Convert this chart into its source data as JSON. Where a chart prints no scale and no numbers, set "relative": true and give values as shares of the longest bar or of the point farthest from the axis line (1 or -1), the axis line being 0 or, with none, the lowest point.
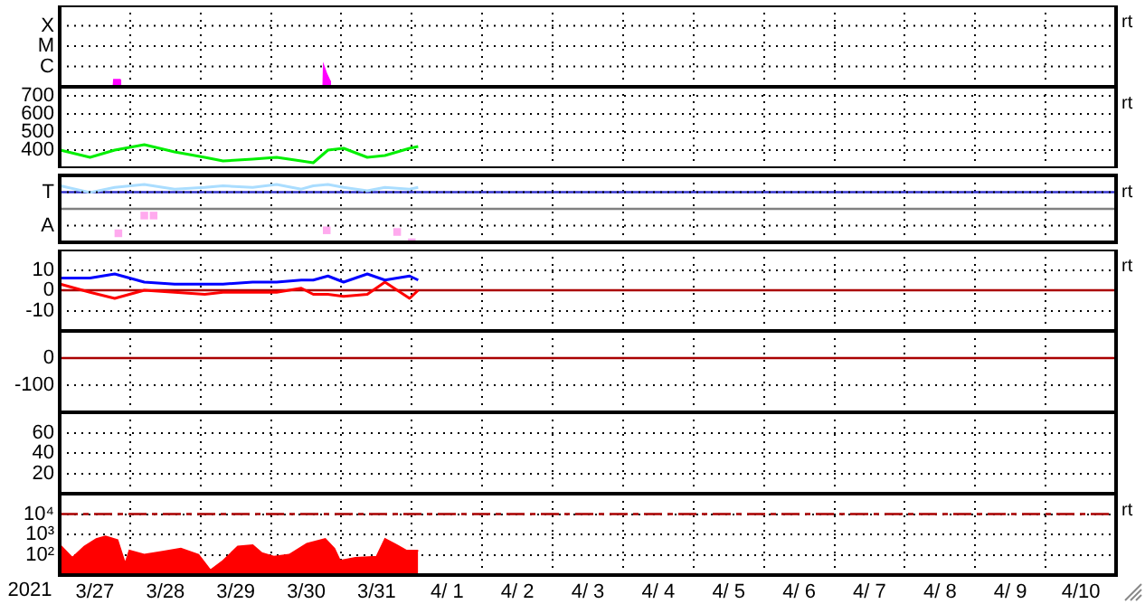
{
  "chart_data": [
    {
      "type": "area",
      "relative": true,
      "grid": true,
      "tick_labels": false,
      "annotations": [
        "X",
        "M",
        "C",
        "rt"
      ],
      "xlim": [
        "2021-03-27T00:00",
        "2021-04-11T00:00"
      ],
      "xticks": [
        {
          "value": "2021-03-28T00:00",
          "label": null
        },
        {
          "value": "2021-03-29T00:00",
          "label": null
        },
        {
          "value": "2021-03-30T00:00",
          "label": null
        },
        {
          "value": "2021-03-31T00:00",
          "label": null
        },
        {
          "value": "2021-04-01T00:00",
          "label": null
        },
        {
          "value": "2021-04-02T00:00",
          "label": null
        },
        {
          "value": "2021-04-03T00:00",
          "label": null
        },
        {
          "value": "2021-04-04T00:00",
          "label": null
        },
        {
          "value": "2021-04-05T00:00",
          "label": null
        },
        {
          "value": "2021-04-06T00:00",
          "label": null
        },
        {
          "value": "2021-04-07T00:00",
          "label": null
        },
        {
          "value": "2021-04-08T00:00",
          "label": null
        },
        {
          "value": "2021-04-09T00:00",
          "label": null
        },
        {
          "value": "2021-04-10T00:00",
          "label": null
        }
      ],
      "series": [
        {
          "color": "#ff00ff",
          "x": [
            "2021-03-27T18:20",
            "2021-03-27T18:30",
            "2021-03-27T20:30",
            "2021-03-27T20:40",
            "2021-03-30T17:50",
            "2021-03-30T18:00",
            "2021-03-30T19:00",
            "2021-03-30T20:00",
            "2021-03-30T20:10"
          ],
          "values": [
            0,
            0.35,
            0.35,
            0,
            0,
            1,
            0.6,
            0.3,
            0
          ]
        }
      ]
    },
    {
      "type": "line",
      "ylim": [
        300,
        750
      ],
      "yticks": [
        400,
        500,
        600,
        700
      ],
      "grid": true,
      "tick_labels": "y",
      "annotations": [
        "rt"
      ],
      "xlim": [
        "2021-03-27T00:00",
        "2021-04-11T00:00"
      ],
      "xticks": [
        {
          "value": "2021-03-28T00:00",
          "label": null
        },
        {
          "value": "2021-03-29T00:00",
          "label": null
        },
        {
          "value": "2021-03-30T00:00",
          "label": null
        },
        {
          "value": "2021-03-31T00:00",
          "label": null
        },
        {
          "value": "2021-04-01T00:00",
          "label": null
        },
        {
          "value": "2021-04-02T00:00",
          "label": null
        },
        {
          "value": "2021-04-03T00:00",
          "label": null
        },
        {
          "value": "2021-04-04T00:00",
          "label": null
        },
        {
          "value": "2021-04-05T00:00",
          "label": null
        },
        {
          "value": "2021-04-06T00:00",
          "label": null
        },
        {
          "value": "2021-04-07T00:00",
          "label": null
        },
        {
          "value": "2021-04-08T00:00",
          "label": null
        },
        {
          "value": "2021-04-09T00:00",
          "label": null
        },
        {
          "value": "2021-04-10T00:00",
          "label": null
        }
      ],
      "x": [
        "2021-03-27T00:15",
        "2021-03-27T10:20",
        "2021-03-27T18:45",
        "2021-03-28T04:50",
        "2021-03-28T15:10",
        "2021-03-29T01:25",
        "2021-03-29T07:40",
        "2021-03-29T17:45",
        "2021-03-30T01:55",
        "2021-03-30T10:20",
        "2021-03-30T14:25",
        "2021-03-30T19:25",
        "2021-03-31T00:45",
        "2021-03-31T08:50",
        "2021-03-31T14:50",
        "2021-03-31T23:15",
        "2021-04-01T02:10"
      ],
      "series": [
        {
          "color": "#00ee00",
          "values": [
            400,
            360,
            400,
            430,
            390,
            360,
            340,
            350,
            360,
            340,
            330,
            400,
            410,
            360,
            370,
            410,
            420
          ]
        }
      ]
    },
    {
      "type": "line",
      "relative": true,
      "grid": true,
      "tick_labels": false,
      "annotations": [
        "T",
        "A",
        "rt"
      ],
      "ref_lines": [
        {
          "axis": "y",
          "value": 0.5,
          "color": "#3333cc"
        },
        {
          "axis": "y",
          "value": 0,
          "color": "#808080"
        }
      ],
      "xlim": [
        "2021-03-27T00:00",
        "2021-04-11T00:00"
      ],
      "xticks": [
        {
          "value": "2021-03-28T00:00",
          "label": null
        },
        {
          "value": "2021-03-29T00:00",
          "label": null
        },
        {
          "value": "2021-03-30T00:00",
          "label": null
        },
        {
          "value": "2021-03-31T00:00",
          "label": null
        },
        {
          "value": "2021-04-01T00:00",
          "label": null
        },
        {
          "value": "2021-04-02T00:00",
          "label": null
        },
        {
          "value": "2021-04-03T00:00",
          "label": null
        },
        {
          "value": "2021-04-04T00:00",
          "label": null
        },
        {
          "value": "2021-04-05T00:00",
          "label": null
        },
        {
          "value": "2021-04-06T00:00",
          "label": null
        },
        {
          "value": "2021-04-07T00:00",
          "label": null
        },
        {
          "value": "2021-04-08T00:00",
          "label": null
        },
        {
          "value": "2021-04-09T00:00",
          "label": null
        },
        {
          "value": "2021-04-10T00:00",
          "label": null
        }
      ],
      "x": [
        "2021-03-27T00:15",
        "2021-03-27T10:20",
        "2021-03-27T18:45",
        "2021-03-28T04:50",
        "2021-03-28T15:10",
        "2021-03-29T01:25",
        "2021-03-29T07:40",
        "2021-03-29T17:45",
        "2021-03-30T01:55",
        "2021-03-30T10:20",
        "2021-03-30T14:25",
        "2021-03-30T19:25",
        "2021-03-31T00:45",
        "2021-03-31T08:50",
        "2021-03-31T14:50",
        "2021-03-31T23:15",
        "2021-04-01T02:10"
      ],
      "series": [
        {
          "color": "#aaddff",
          "values": [
            0.69,
            0.49,
            0.64,
            0.73,
            0.59,
            0.64,
            0.69,
            0.64,
            0.73,
            0.59,
            0.69,
            0.73,
            0.64,
            0.54,
            0.64,
            0.59,
            0.64
          ]
        },
        {
          "type": "scatter",
          "marker": "square",
          "color": "#ffaaee",
          "x": [
            "2021-03-27T20:00",
            "2021-03-28T04:50",
            "2021-03-28T08:00",
            "2021-03-30T19:00",
            "2021-03-31T19:00",
            "2021-04-01T00:00"
          ],
          "values": [
            -0.73,
            -0.2,
            -0.2,
            -0.64,
            -0.69,
            -1
          ]
        }
      ]
    },
    {
      "type": "line",
      "ylim": [
        -20,
        20
      ],
      "yticks": [
        -10,
        0,
        10
      ],
      "grid": true,
      "tick_labels": "y",
      "annotations": [
        "rt"
      ],
      "ref_lines": [
        {
          "axis": "y",
          "value": 0,
          "color": "#aa0000"
        }
      ],
      "xlim": [
        "2021-03-27T00:00",
        "2021-04-11T00:00"
      ],
      "xticks": [
        {
          "value": "2021-03-28T00:00",
          "label": null
        },
        {
          "value": "2021-03-29T00:00",
          "label": null
        },
        {
          "value": "2021-03-30T00:00",
          "label": null
        },
        {
          "value": "2021-03-31T00:00",
          "label": null
        },
        {
          "value": "2021-04-01T00:00",
          "label": null
        },
        {
          "value": "2021-04-02T00:00",
          "label": null
        },
        {
          "value": "2021-04-03T00:00",
          "label": null
        },
        {
          "value": "2021-04-04T00:00",
          "label": null
        },
        {
          "value": "2021-04-05T00:00",
          "label": null
        },
        {
          "value": "2021-04-06T00:00",
          "label": null
        },
        {
          "value": "2021-04-07T00:00",
          "label": null
        },
        {
          "value": "2021-04-08T00:00",
          "label": null
        },
        {
          "value": "2021-04-09T00:00",
          "label": null
        },
        {
          "value": "2021-04-10T00:00",
          "label": null
        }
      ],
      "x": [
        "2021-03-27T00:15",
        "2021-03-27T10:20",
        "2021-03-27T18:45",
        "2021-03-28T04:50",
        "2021-03-28T15:10",
        "2021-03-29T01:25",
        "2021-03-29T07:40",
        "2021-03-29T17:45",
        "2021-03-30T01:55",
        "2021-03-30T10:20",
        "2021-03-30T14:25",
        "2021-03-30T19:25",
        "2021-03-31T00:45",
        "2021-03-31T08:50",
        "2021-03-31T14:50",
        "2021-03-31T23:15",
        "2021-04-01T02:10"
      ],
      "series": [
        {
          "color": "#0000ff",
          "values": [
            6,
            6,
            8,
            4,
            3,
            3,
            3,
            4,
            4,
            5,
            5,
            7,
            4,
            8,
            5,
            7,
            5
          ]
        },
        {
          "color": "#ff0000",
          "values": [
            3,
            -1,
            -4,
            0,
            -1,
            -2,
            -1,
            -1,
            -1,
            1,
            -2,
            -2,
            -3,
            -2,
            4,
            -4,
            0
          ]
        }
      ]
    },
    {
      "type": "line",
      "ylim": [
        -200,
        100
      ],
      "yticks": [
        -100,
        0
      ],
      "grid": true,
      "tick_labels": "y",
      "ref_lines": [
        {
          "axis": "y",
          "value": 0,
          "color": "#aa0000"
        }
      ],
      "xlim": [
        "2021-03-27T00:00",
        "2021-04-11T00:00"
      ],
      "xticks": [
        {
          "value": "2021-03-28T00:00",
          "label": null
        },
        {
          "value": "2021-03-29T00:00",
          "label": null
        },
        {
          "value": "2021-03-30T00:00",
          "label": null
        },
        {
          "value": "2021-03-31T00:00",
          "label": null
        },
        {
          "value": "2021-04-01T00:00",
          "label": null
        },
        {
          "value": "2021-04-02T00:00",
          "label": null
        },
        {
          "value": "2021-04-03T00:00",
          "label": null
        },
        {
          "value": "2021-04-04T00:00",
          "label": null
        },
        {
          "value": "2021-04-05T00:00",
          "label": null
        },
        {
          "value": "2021-04-06T00:00",
          "label": null
        },
        {
          "value": "2021-04-07T00:00",
          "label": null
        },
        {
          "value": "2021-04-08T00:00",
          "label": null
        },
        {
          "value": "2021-04-09T00:00",
          "label": null
        },
        {
          "value": "2021-04-10T00:00",
          "label": null
        }
      ]
    },
    {
      "type": "line",
      "ylim": [
        0,
        80
      ],
      "yticks": [
        20,
        40,
        60
      ],
      "grid": true,
      "tick_labels": "y",
      "xlim": [
        "2021-03-27T00:00",
        "2021-04-11T00:00"
      ],
      "xticks": [
        {
          "value": "2021-03-28T00:00",
          "label": null
        },
        {
          "value": "2021-03-29T00:00",
          "label": null
        },
        {
          "value": "2021-03-30T00:00",
          "label": null
        },
        {
          "value": "2021-03-31T00:00",
          "label": null
        },
        {
          "value": "2021-04-01T00:00",
          "label": null
        },
        {
          "value": "2021-04-02T00:00",
          "label": null
        },
        {
          "value": "2021-04-03T00:00",
          "label": null
        },
        {
          "value": "2021-04-04T00:00",
          "label": null
        },
        {
          "value": "2021-04-05T00:00",
          "label": null
        },
        {
          "value": "2021-04-06T00:00",
          "label": null
        },
        {
          "value": "2021-04-07T00:00",
          "label": null
        },
        {
          "value": "2021-04-08T00:00",
          "label": null
        },
        {
          "value": "2021-04-09T00:00",
          "label": null
        },
        {
          "value": "2021-04-10T00:00",
          "label": null
        }
      ]
    },
    {
      "type": "area",
      "log": "y",
      "ylim": [
        10,
        100000
      ],
      "yticks": [
        {
          "value": 100,
          "label": "10²"
        },
        {
          "value": 1000,
          "label": "10³"
        },
        {
          "value": 10000,
          "label": "10⁴"
        }
      ],
      "grid": true,
      "annotations": [
        "rt"
      ],
      "xlabel": "2021",
      "ref_lines": [
        {
          "axis": "y",
          "value": 10000,
          "color": "#aa0000",
          "line_style": "dashed"
        }
      ],
      "xlim": [
        "2021-03-27T00:00",
        "2021-04-11T00:00"
      ],
      "xticks": [
        {
          "value": "2021-03-27T12:00",
          "label": "3/27"
        },
        {
          "value": "2021-03-28T00:00",
          "label": null
        },
        {
          "value": "2021-03-28T12:00",
          "label": "3/28"
        },
        {
          "value": "2021-03-29T00:00",
          "label": null
        },
        {
          "value": "2021-03-29T12:00",
          "label": "3/29"
        },
        {
          "value": "2021-03-30T00:00",
          "label": null
        },
        {
          "value": "2021-03-30T12:00",
          "label": "3/30"
        },
        {
          "value": "2021-03-31T00:00",
          "label": null
        },
        {
          "value": "2021-03-31T12:00",
          "label": "3/31"
        },
        {
          "value": "2021-04-01T00:00",
          "label": null
        },
        {
          "value": "2021-04-01T12:00",
          "label": "4/ 1"
        },
        {
          "value": "2021-04-02T00:00",
          "label": null
        },
        {
          "value": "2021-04-02T12:00",
          "label": "4/ 2"
        },
        {
          "value": "2021-04-03T00:00",
          "label": null
        },
        {
          "value": "2021-04-03T12:00",
          "label": "4/ 3"
        },
        {
          "value": "2021-04-04T00:00",
          "label": null
        },
        {
          "value": "2021-04-04T12:00",
          "label": "4/ 4"
        },
        {
          "value": "2021-04-05T00:00",
          "label": null
        },
        {
          "value": "2021-04-05T12:00",
          "label": "4/ 5"
        },
        {
          "value": "2021-04-06T00:00",
          "label": null
        },
        {
          "value": "2021-04-06T12:00",
          "label": "4/ 6"
        },
        {
          "value": "2021-04-07T00:00",
          "label": null
        },
        {
          "value": "2021-04-07T12:00",
          "label": "4/ 7"
        },
        {
          "value": "2021-04-08T00:00",
          "label": null
        },
        {
          "value": "2021-04-08T12:00",
          "label": "4/ 8"
        },
        {
          "value": "2021-04-09T00:00",
          "label": null
        },
        {
          "value": "2021-04-09T12:00",
          "label": "4/ 9"
        },
        {
          "value": "2021-04-10T00:00",
          "label": null
        },
        {
          "value": "2021-04-10T12:00",
          "label": "4/10"
        }
      ],
      "x": [
        "2021-03-27T00:12",
        "2021-03-27T04:18",
        "2021-03-27T08:24",
        "2021-03-27T12:29",
        "2021-03-27T15:36",
        "2021-03-27T19:41",
        "2021-03-27T22:19",
        "2021-03-27T23:46",
        "2021-03-28T04:48",
        "2021-03-28T11:02",
        "2021-03-28T17:17",
        "2021-03-28T23:17",
        "2021-03-29T03:22",
        "2021-03-29T07:41",
        "2021-03-29T12:43",
        "2021-03-29T17:46",
        "2021-03-29T20:53",
        "2021-03-30T00:58",
        "2021-03-30T06:14",
        "2021-03-30T12:14",
        "2021-03-30T18:29",
        "2021-03-30T21:36",
        "2021-03-30T23:31",
        "2021-03-31T04:48",
        "2021-03-31T12:00",
        "2021-03-31T14:53",
        "2021-03-31T18:58",
        "2021-03-31T22:05",
        "2021-04-01T02:10"
      ],
      "series": [
        {
          "color": "#ff0000",
          "values": [
            290,
            70,
            250,
            590,
            790,
            520,
            35,
            160,
            100,
            140,
            200,
            100,
            17,
            50,
            250,
            290,
            120,
            80,
            100,
            340,
            590,
            200,
            50,
            70,
            80,
            590,
            290,
            160,
            160
          ]
        }
      ]
    }
  ]
}
